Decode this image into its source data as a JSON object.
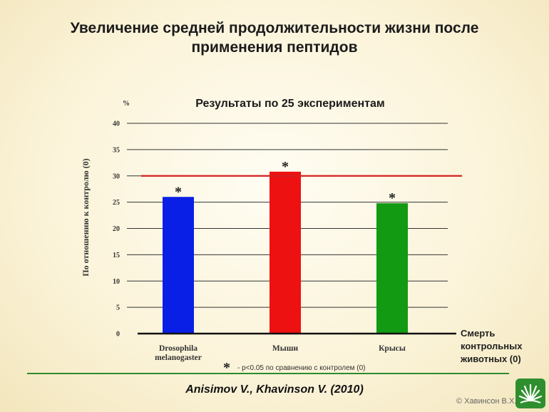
{
  "title_lines": [
    "Увеличение средней продолжительности жизни после",
    "применения пептидов"
  ],
  "chart_data": {
    "type": "bar",
    "title": "Результаты по 25 экспериментам",
    "unit_label": "%",
    "ylabel": "По отношению к контролю (0)",
    "ylim": [
      0,
      40
    ],
    "yticks": [
      0,
      5,
      10,
      15,
      20,
      25,
      30,
      35,
      40
    ],
    "categories": [
      "Drosophila melanogaster",
      "Мыши",
      "Крысы"
    ],
    "category_labels": [
      [
        "Drosophila",
        "melanogaster"
      ],
      [
        "Мыши"
      ],
      [
        "Крысы"
      ]
    ],
    "values": [
      26,
      30.8,
      24.8
    ],
    "colors": [
      "#0a1fe6",
      "#ee1111",
      "#129a12"
    ],
    "significance_marks": [
      "*",
      "*",
      "*"
    ],
    "reference_line": {
      "value": 30,
      "color": "#d42020"
    },
    "baseline_label": [
      "Смерть",
      "контрольных",
      "животных (0)"
    ],
    "footnote_marker": "*",
    "footnote": "- p<0.05 по сравнению с контролем (0)",
    "grid": true
  },
  "citation": "Anisimov V., Khavinson V. (2010)",
  "copyright": "© Хавинсон В.Х.",
  "colors": {
    "rule": "#2e8b2e",
    "baseline": "#111111",
    "grid": "#333333"
  }
}
